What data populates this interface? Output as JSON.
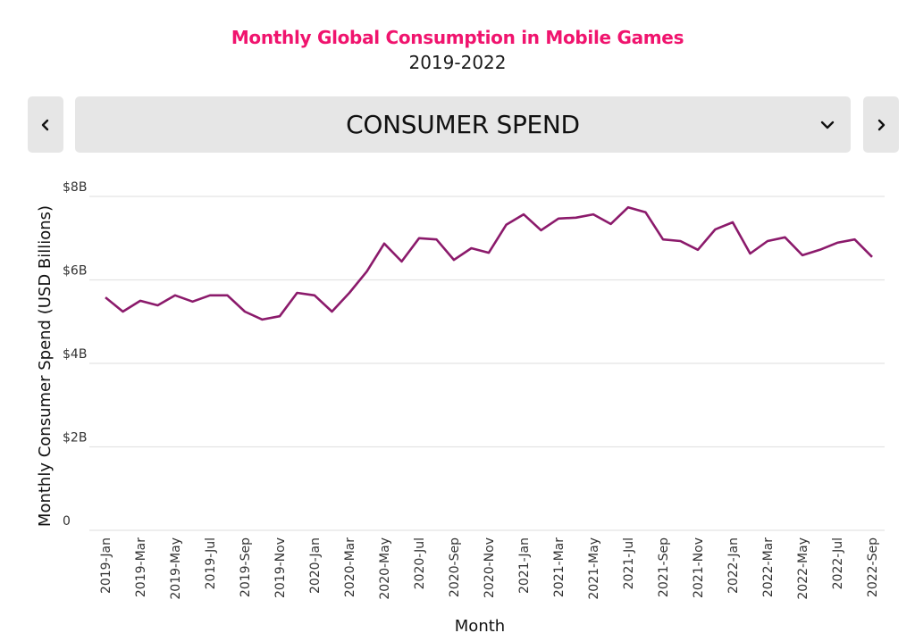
{
  "header": {
    "title": "Monthly Global Consumption in Mobile Games",
    "subtitle": "2019-2022",
    "title_color": "#F0146E"
  },
  "selector": {
    "label": "CONSUMER SPEND",
    "prev_icon": "chevron-left-icon",
    "next_icon": "chevron-right-icon",
    "dropdown_icon": "chevron-down-icon"
  },
  "chart_data": {
    "type": "line",
    "title": "Monthly Global Consumption in Mobile Games",
    "subtitle": "2019-2022",
    "xlabel": "Month",
    "ylabel": "Monthly Consumer Spend (USD Billions)",
    "ylim": [
      0,
      8
    ],
    "yticks": [
      0,
      2,
      4,
      6,
      8
    ],
    "ytick_labels": [
      "0",
      "$2B",
      "$4B",
      "$6B",
      "$8B"
    ],
    "grid": true,
    "line_color": "#8B1A6B",
    "x": [
      "2019-Jan",
      "2019-Feb",
      "2019-Mar",
      "2019-Apr",
      "2019-May",
      "2019-Jun",
      "2019-Jul",
      "2019-Aug",
      "2019-Sep",
      "2019-Oct",
      "2019-Nov",
      "2019-Dec",
      "2020-Jan",
      "2020-Feb",
      "2020-Mar",
      "2020-Apr",
      "2020-May",
      "2020-Jun",
      "2020-Jul",
      "2020-Aug",
      "2020-Sep",
      "2020-Oct",
      "2020-Nov",
      "2020-Dec",
      "2021-Jan",
      "2021-Feb",
      "2021-Mar",
      "2021-Apr",
      "2021-May",
      "2021-Jun",
      "2021-Jul",
      "2021-Aug",
      "2021-Sep",
      "2021-Oct",
      "2021-Nov",
      "2021-Dec",
      "2022-Jan",
      "2022-Feb",
      "2022-Mar",
      "2022-Apr",
      "2022-May",
      "2022-Jun",
      "2022-Jul",
      "2022-Aug",
      "2022-Sep"
    ],
    "xtick_labels": [
      "2019-Jan",
      "2019-Mar",
      "2019-May",
      "2019-Jul",
      "2019-Sep",
      "2019-Nov",
      "2020-Jan",
      "2020-Mar",
      "2020-May",
      "2020-Jul",
      "2020-Sep",
      "2020-Nov",
      "2021-Jan",
      "2021-Mar",
      "2021-May",
      "2021-Jul",
      "2021-Sep",
      "2021-Nov",
      "2022-Jan",
      "2022-Mar",
      "2022-May",
      "2022-Jul",
      "2022-Sep"
    ],
    "series": [
      {
        "name": "Consumer Spend",
        "values": [
          5.58,
          5.24,
          5.5,
          5.39,
          5.63,
          5.48,
          5.63,
          5.63,
          5.24,
          5.05,
          5.13,
          5.69,
          5.63,
          5.24,
          5.69,
          6.2,
          6.87,
          6.44,
          7.0,
          6.97,
          6.48,
          6.76,
          6.65,
          7.32,
          7.57,
          7.19,
          7.47,
          7.49,
          7.57,
          7.34,
          7.74,
          7.62,
          6.97,
          6.93,
          6.72,
          7.21,
          7.38,
          6.63,
          6.93,
          7.02,
          6.59,
          6.72,
          6.89,
          6.97,
          6.55
        ]
      }
    ]
  }
}
